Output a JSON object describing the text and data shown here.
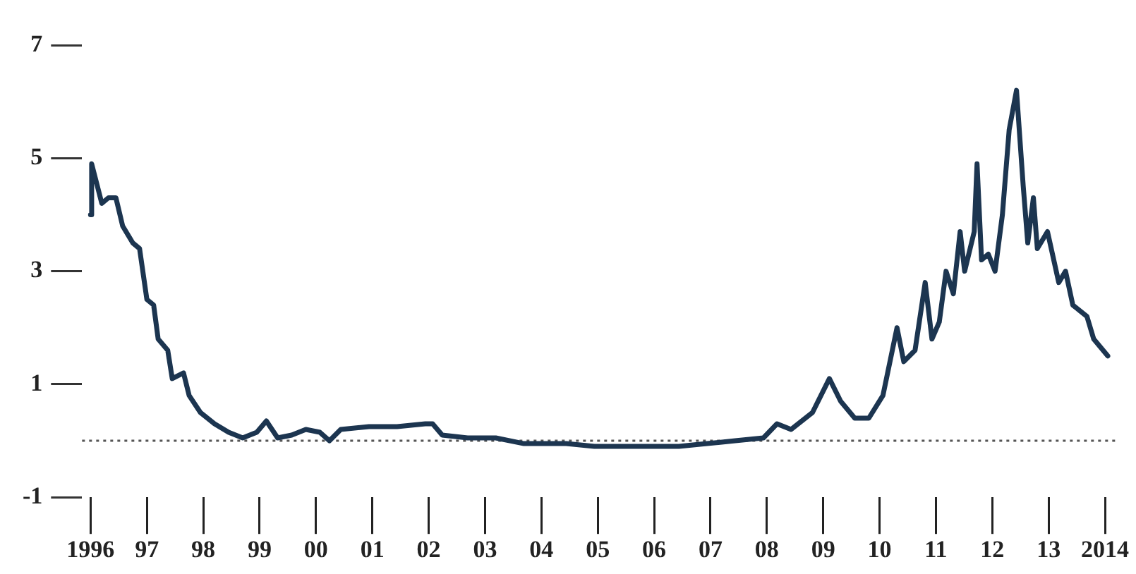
{
  "chart_data": {
    "type": "line",
    "x": [
      1996.0,
      1996.02,
      1996.2,
      1996.32,
      1996.45,
      1996.57,
      1996.75,
      1996.87,
      1997.0,
      1997.12,
      1997.2,
      1997.37,
      1997.45,
      1997.65,
      1997.75,
      1997.95,
      1998.2,
      1998.45,
      1998.7,
      1998.95,
      1999.12,
      1999.32,
      1999.57,
      1999.82,
      2000.07,
      2000.24,
      2000.44,
      2000.94,
      2001.44,
      2001.94,
      2002.07,
      2002.24,
      2002.69,
      2003.19,
      2003.69,
      2004.44,
      2004.94,
      2005.69,
      2006.44,
      2006.94,
      2007.44,
      2007.94,
      2008.18,
      2008.43,
      2008.81,
      2009.11,
      2009.31,
      2009.56,
      2009.81,
      2010.06,
      2010.31,
      2010.43,
      2010.63,
      2010.81,
      2010.93,
      2011.06,
      2011.18,
      2011.31,
      2011.43,
      2011.51,
      2011.68,
      2011.73,
      2011.81,
      2011.93,
      2012.05,
      2012.18,
      2012.3,
      2012.43,
      2012.55,
      2012.63,
      2012.73,
      2012.8,
      2012.98,
      2013.18,
      2013.3,
      2013.43,
      2013.68,
      2013.8,
      2014.05
    ],
    "series": [
      {
        "color": "#1c3550",
        "values": [
          4.0,
          4.9,
          4.2,
          4.3,
          4.3,
          3.8,
          3.5,
          3.4,
          2.5,
          2.4,
          1.8,
          1.6,
          1.1,
          1.2,
          0.8,
          0.5,
          0.3,
          0.15,
          0.05,
          0.15,
          0.35,
          0.05,
          0.1,
          0.2,
          0.15,
          0.0,
          0.2,
          0.25,
          0.25,
          0.3,
          0.3,
          0.1,
          0.05,
          0.05,
          -0.05,
          -0.05,
          -0.1,
          -0.1,
          -0.1,
          -0.05,
          0.0,
          0.05,
          0.3,
          0.2,
          0.5,
          1.1,
          0.7,
          0.4,
          0.4,
          0.8,
          2.0,
          1.4,
          1.6,
          2.8,
          1.8,
          2.1,
          3.0,
          2.6,
          3.7,
          3.0,
          3.7,
          4.9,
          3.2,
          3.3,
          3.0,
          4.0,
          5.5,
          6.2,
          4.5,
          3.5,
          4.3,
          3.4,
          3.7,
          2.8,
          3.0,
          2.4,
          2.2,
          1.8,
          1.5
        ]
      }
    ],
    "xlim": [
      1995.85,
      2014.2
    ],
    "xticks": [
      {
        "value": 1996,
        "label": "1996"
      },
      {
        "value": 1997,
        "label": "97"
      },
      {
        "value": 1998,
        "label": "98"
      },
      {
        "value": 1999,
        "label": "99"
      },
      {
        "value": 2000,
        "label": "00"
      },
      {
        "value": 2001,
        "label": "01"
      },
      {
        "value": 2002,
        "label": "02"
      },
      {
        "value": 2003,
        "label": "03"
      },
      {
        "value": 2004,
        "label": "04"
      },
      {
        "value": 2005,
        "label": "05"
      },
      {
        "value": 2006,
        "label": "06"
      },
      {
        "value": 2007,
        "label": "07"
      },
      {
        "value": 2008,
        "label": "08"
      },
      {
        "value": 2009,
        "label": "09"
      },
      {
        "value": 2010,
        "label": "10"
      },
      {
        "value": 2011,
        "label": "11"
      },
      {
        "value": 2012,
        "label": "12"
      },
      {
        "value": 2013,
        "label": "13"
      },
      {
        "value": 2014,
        "label": "2014"
      }
    ],
    "ylim": [
      -1,
      7
    ],
    "yticks": [
      -1,
      1,
      3,
      5,
      7
    ],
    "ref_lines": [
      {
        "axis": "y",
        "value": 0,
        "line_style": "dotted",
        "color": "#555555"
      }
    ],
    "grid": false,
    "legend": false,
    "marker": "none",
    "line_style": "solid"
  }
}
